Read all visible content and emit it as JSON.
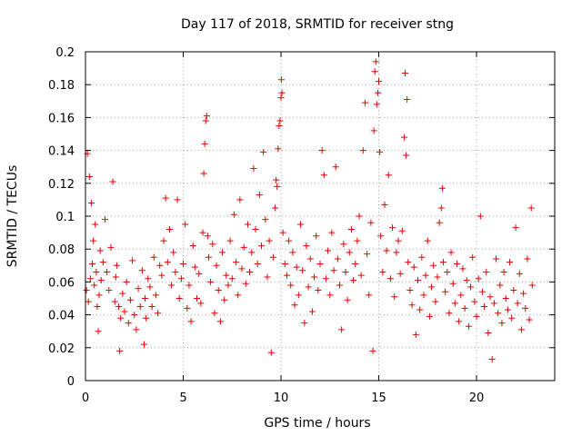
{
  "chart_data": {
    "type": "scatter",
    "title": "Day 117 of 2018, SRMTID for receiver stng",
    "xlabel": "GPS time / hours",
    "ylabel": "SRMTID / TECUs",
    "xlim": [
      0,
      24
    ],
    "ylim": [
      0,
      0.2
    ],
    "xticks": [
      0,
      5,
      10,
      15,
      20
    ],
    "yticks": [
      0,
      0.02,
      0.04,
      0.06,
      0.08,
      0.1,
      0.12,
      0.14,
      0.16,
      0.18,
      0.2
    ],
    "xtick_labels": [
      "0",
      "5",
      "10",
      "15",
      "20"
    ],
    "ytick_labels": [
      "0",
      "0.02",
      "0.04",
      "0.06",
      "0.08",
      "0.1",
      "0.12",
      "0.14",
      "0.16",
      "0.18",
      "0.2"
    ],
    "grid": true,
    "marker": "+",
    "marker_color": "#e00000",
    "series": [
      {
        "name": "SRMTID",
        "points": [
          [
            0.05,
            0.055
          ],
          [
            0.1,
            0.138
          ],
          [
            0.15,
            0.048
          ],
          [
            0.2,
            0.124
          ],
          [
            0.25,
            0.062
          ],
          [
            0.3,
            0.108
          ],
          [
            0.35,
            0.071
          ],
          [
            0.4,
            0.085
          ],
          [
            0.45,
            0.058
          ],
          [
            0.5,
            0.095
          ],
          [
            0.55,
            0.066
          ],
          [
            0.6,
            0.045
          ],
          [
            0.65,
            0.03
          ],
          [
            0.7,
            0.052
          ],
          [
            0.75,
            0.079
          ],
          [
            0.8,
            0.061
          ],
          [
            0.9,
            0.072
          ],
          [
            1.0,
            0.098
          ],
          [
            1.1,
            0.066
          ],
          [
            1.2,
            0.055
          ],
          [
            1.3,
            0.081
          ],
          [
            1.4,
            0.121
          ],
          [
            1.5,
            0.048
          ],
          [
            1.55,
            0.063
          ],
          [
            1.6,
            0.07
          ],
          [
            1.7,
            0.045
          ],
          [
            1.75,
            0.018
          ],
          [
            1.8,
            0.038
          ],
          [
            1.9,
            0.053
          ],
          [
            2.0,
            0.042
          ],
          [
            2.1,
            0.06
          ],
          [
            2.2,
            0.035
          ],
          [
            2.3,
            0.049
          ],
          [
            2.4,
            0.073
          ],
          [
            2.5,
            0.04
          ],
          [
            2.6,
            0.031
          ],
          [
            2.7,
            0.056
          ],
          [
            2.8,
            0.045
          ],
          [
            2.9,
            0.067
          ],
          [
            3.0,
            0.022
          ],
          [
            3.05,
            0.05
          ],
          [
            3.1,
            0.038
          ],
          [
            3.2,
            0.062
          ],
          [
            3.3,
            0.057
          ],
          [
            3.4,
            0.045
          ],
          [
            3.5,
            0.075
          ],
          [
            3.6,
            0.052
          ],
          [
            3.7,
            0.041
          ],
          [
            3.8,
            0.07
          ],
          [
            3.9,
            0.064
          ],
          [
            4.0,
            0.085
          ],
          [
            4.1,
            0.111
          ],
          [
            4.2,
            0.072
          ],
          [
            4.3,
            0.092
          ],
          [
            4.4,
            0.058
          ],
          [
            4.5,
            0.078
          ],
          [
            4.6,
            0.066
          ],
          [
            4.7,
            0.11
          ],
          [
            4.8,
            0.05
          ],
          [
            4.9,
            0.062
          ],
          [
            5.0,
            0.071
          ],
          [
            5.1,
            0.095
          ],
          [
            5.2,
            0.044
          ],
          [
            5.3,
            0.058
          ],
          [
            5.4,
            0.036
          ],
          [
            5.5,
            0.082
          ],
          [
            5.6,
            0.069
          ],
          [
            5.7,
            0.05
          ],
          [
            5.8,
            0.065
          ],
          [
            5.9,
            0.047
          ],
          [
            6.0,
            0.09
          ],
          [
            6.05,
            0.126
          ],
          [
            6.1,
            0.144
          ],
          [
            6.15,
            0.158
          ],
          [
            6.2,
            0.161
          ],
          [
            6.25,
            0.088
          ],
          [
            6.3,
            0.075
          ],
          [
            6.4,
            0.06
          ],
          [
            6.5,
            0.083
          ],
          [
            6.6,
            0.041
          ],
          [
            6.7,
            0.07
          ],
          [
            6.8,
            0.055
          ],
          [
            6.9,
            0.036
          ],
          [
            7.0,
            0.078
          ],
          [
            7.1,
            0.049
          ],
          [
            7.2,
            0.064
          ],
          [
            7.3,
            0.058
          ],
          [
            7.4,
            0.085
          ],
          [
            7.5,
            0.062
          ],
          [
            7.6,
            0.101
          ],
          [
            7.7,
            0.072
          ],
          [
            7.8,
            0.052
          ],
          [
            7.9,
            0.11
          ],
          [
            8.0,
            0.068
          ],
          [
            8.1,
            0.081
          ],
          [
            8.2,
            0.059
          ],
          [
            8.3,
            0.095
          ],
          [
            8.4,
            0.066
          ],
          [
            8.5,
            0.078
          ],
          [
            8.6,
            0.129
          ],
          [
            8.7,
            0.092
          ],
          [
            8.8,
            0.071
          ],
          [
            8.9,
            0.113
          ],
          [
            9.0,
            0.082
          ],
          [
            9.1,
            0.139
          ],
          [
            9.2,
            0.098
          ],
          [
            9.3,
            0.063
          ],
          [
            9.4,
            0.085
          ],
          [
            9.5,
            0.017
          ],
          [
            9.6,
            0.075
          ],
          [
            9.7,
            0.105
          ],
          [
            9.75,
            0.122
          ],
          [
            9.8,
            0.118
          ],
          [
            9.85,
            0.141
          ],
          [
            9.9,
            0.155
          ],
          [
            9.95,
            0.158
          ],
          [
            10.0,
            0.172
          ],
          [
            10.02,
            0.183
          ],
          [
            10.05,
            0.175
          ],
          [
            10.1,
            0.09
          ],
          [
            10.2,
            0.071
          ],
          [
            10.3,
            0.064
          ],
          [
            10.4,
            0.085
          ],
          [
            10.5,
            0.058
          ],
          [
            10.6,
            0.078
          ],
          [
            10.7,
            0.046
          ],
          [
            10.8,
            0.069
          ],
          [
            10.9,
            0.052
          ],
          [
            11.0,
            0.095
          ],
          [
            11.1,
            0.067
          ],
          [
            11.2,
            0.035
          ],
          [
            11.3,
            0.082
          ],
          [
            11.4,
            0.057
          ],
          [
            11.5,
            0.074
          ],
          [
            11.6,
            0.042
          ],
          [
            11.7,
            0.063
          ],
          [
            11.8,
            0.088
          ],
          [
            11.9,
            0.055
          ],
          [
            12.0,
            0.071
          ],
          [
            12.1,
            0.14
          ],
          [
            12.2,
            0.125
          ],
          [
            12.3,
            0.062
          ],
          [
            12.4,
            0.079
          ],
          [
            12.5,
            0.052
          ],
          [
            12.6,
            0.09
          ],
          [
            12.7,
            0.067
          ],
          [
            12.8,
            0.13
          ],
          [
            12.9,
            0.074
          ],
          [
            13.0,
            0.058
          ],
          [
            13.1,
            0.031
          ],
          [
            13.2,
            0.083
          ],
          [
            13.3,
            0.066
          ],
          [
            13.4,
            0.049
          ],
          [
            13.5,
            0.078
          ],
          [
            13.6,
            0.092
          ],
          [
            13.7,
            0.061
          ],
          [
            13.8,
            0.071
          ],
          [
            13.9,
            0.085
          ],
          [
            14.0,
            0.1
          ],
          [
            14.1,
            0.064
          ],
          [
            14.2,
            0.14
          ],
          [
            14.3,
            0.169
          ],
          [
            14.4,
            0.077
          ],
          [
            14.5,
            0.052
          ],
          [
            14.6,
            0.096
          ],
          [
            14.7,
            0.018
          ],
          [
            14.75,
            0.152
          ],
          [
            14.8,
            0.188
          ],
          [
            14.85,
            0.194
          ],
          [
            14.9,
            0.168
          ],
          [
            14.95,
            0.175
          ],
          [
            15.0,
            0.182
          ],
          [
            15.05,
            0.139
          ],
          [
            15.1,
            0.088
          ],
          [
            15.2,
            0.066
          ],
          [
            15.3,
            0.107
          ],
          [
            15.4,
            0.079
          ],
          [
            15.5,
            0.125
          ],
          [
            15.6,
            0.062
          ],
          [
            15.7,
            0.093
          ],
          [
            15.8,
            0.051
          ],
          [
            15.9,
            0.078
          ],
          [
            16.0,
            0.085
          ],
          [
            16.1,
            0.065
          ],
          [
            16.2,
            0.091
          ],
          [
            16.3,
            0.148
          ],
          [
            16.35,
            0.187
          ],
          [
            16.4,
            0.137
          ],
          [
            16.45,
            0.171
          ],
          [
            16.5,
            0.072
          ],
          [
            16.6,
            0.055
          ],
          [
            16.7,
            0.046
          ],
          [
            16.8,
            0.069
          ],
          [
            16.9,
            0.028
          ],
          [
            17.0,
            0.061
          ],
          [
            17.1,
            0.043
          ],
          [
            17.2,
            0.075
          ],
          [
            17.3,
            0.052
          ],
          [
            17.4,
            0.064
          ],
          [
            17.5,
            0.085
          ],
          [
            17.6,
            0.039
          ],
          [
            17.7,
            0.057
          ],
          [
            17.8,
            0.07
          ],
          [
            17.9,
            0.048
          ],
          [
            18.0,
            0.063
          ],
          [
            18.1,
            0.096
          ],
          [
            18.2,
            0.105
          ],
          [
            18.25,
            0.117
          ],
          [
            18.3,
            0.072
          ],
          [
            18.4,
            0.054
          ],
          [
            18.5,
            0.066
          ],
          [
            18.6,
            0.041
          ],
          [
            18.7,
            0.078
          ],
          [
            18.8,
            0.059
          ],
          [
            18.9,
            0.047
          ],
          [
            19.0,
            0.071
          ],
          [
            19.1,
            0.036
          ],
          [
            19.2,
            0.052
          ],
          [
            19.3,
            0.068
          ],
          [
            19.4,
            0.044
          ],
          [
            19.5,
            0.061
          ],
          [
            19.6,
            0.033
          ],
          [
            19.7,
            0.057
          ],
          [
            19.8,
            0.075
          ],
          [
            19.9,
            0.048
          ],
          [
            20.0,
            0.039
          ],
          [
            20.1,
            0.062
          ],
          [
            20.2,
            0.1
          ],
          [
            20.3,
            0.054
          ],
          [
            20.4,
            0.045
          ],
          [
            20.5,
            0.066
          ],
          [
            20.6,
            0.029
          ],
          [
            20.7,
            0.051
          ],
          [
            20.8,
            0.013
          ],
          [
            20.9,
            0.047
          ],
          [
            21.0,
            0.074
          ],
          [
            21.1,
            0.041
          ],
          [
            21.2,
            0.058
          ],
          [
            21.3,
            0.035
          ],
          [
            21.4,
            0.066
          ],
          [
            21.5,
            0.05
          ],
          [
            21.6,
            0.043
          ],
          [
            21.7,
            0.072
          ],
          [
            21.8,
            0.038
          ],
          [
            21.9,
            0.055
          ],
          [
            22.0,
            0.093
          ],
          [
            22.1,
            0.047
          ],
          [
            22.2,
            0.065
          ],
          [
            22.3,
            0.031
          ],
          [
            22.4,
            0.053
          ],
          [
            22.5,
            0.044
          ],
          [
            22.6,
            0.074
          ],
          [
            22.7,
            0.037
          ],
          [
            22.8,
            0.105
          ],
          [
            22.85,
            0.058
          ]
        ]
      }
    ]
  }
}
